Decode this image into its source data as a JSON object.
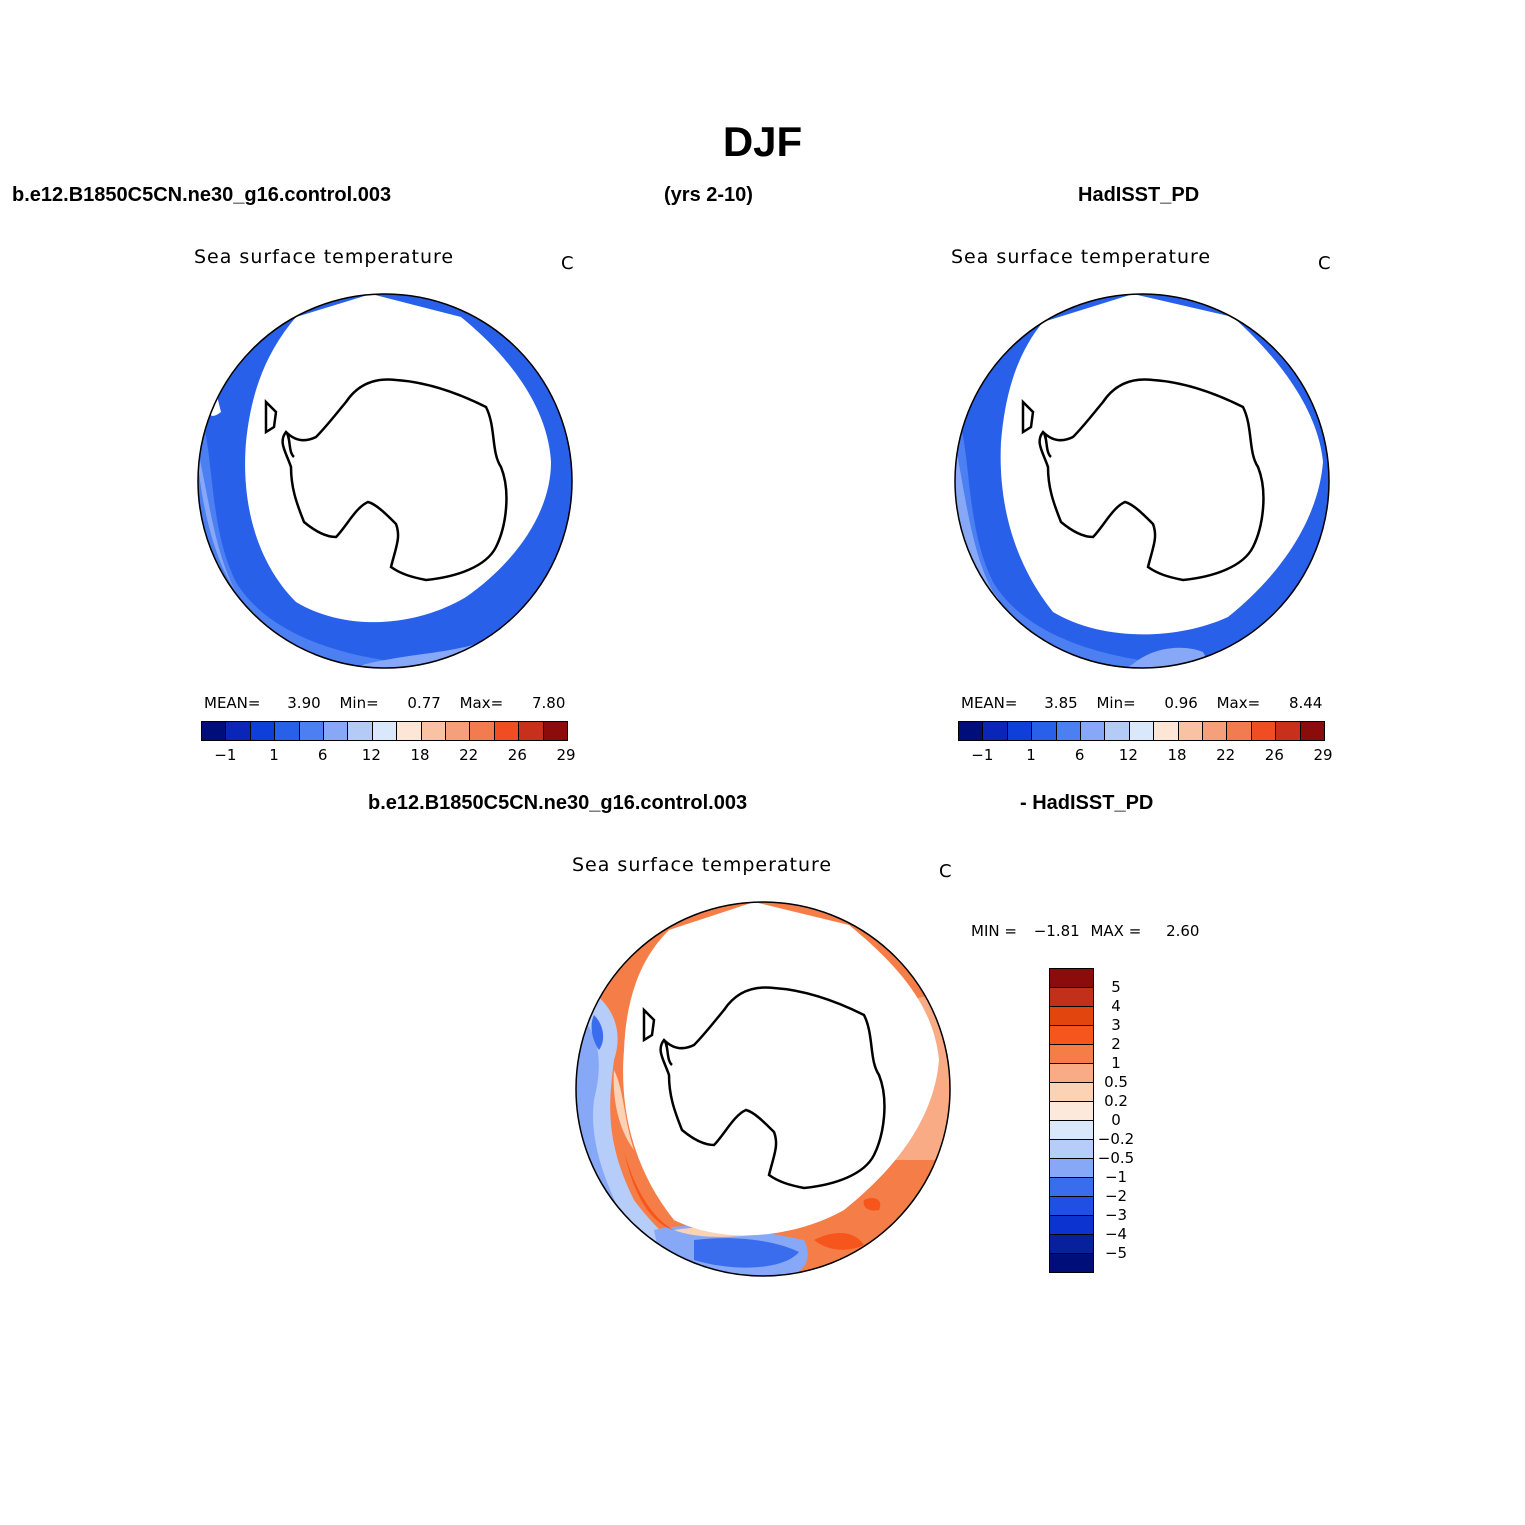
{
  "figure": {
    "title": "DJF",
    "header_left": "b.e12.B1850C5CN.ne30_g16.control.003",
    "header_center": "(yrs 2-10)",
    "header_right": "HadISST_PD",
    "diff_header_left": "b.e12.B1850C5CN.ne30_g16.control.003",
    "diff_header_right": "- HadISST_PD"
  },
  "panels": {
    "model": {
      "title": "Sea surface temperature",
      "units": "C",
      "mean_label": "MEAN=",
      "mean": "3.90",
      "min_label": "Min=",
      "min": "0.77",
      "max_label": "Max=",
      "max": "7.80"
    },
    "obs": {
      "title": "Sea surface temperature",
      "units": "C",
      "mean_label": "MEAN=",
      "mean": "3.85",
      "min_label": "Min=",
      "min": "0.96",
      "max_label": "Max=",
      "max": "8.44"
    },
    "diff": {
      "title": "Sea surface temperature",
      "units": "C",
      "min_label": "MIN =",
      "min": "−1.81",
      "max_label": "MAX =",
      "max": "2.60"
    }
  },
  "colorbar_abs": {
    "colors": [
      "#000e7a",
      "#0a26b8",
      "#0f3fd9",
      "#2860ea",
      "#4b7ff2",
      "#86a8f7",
      "#b4cbf8",
      "#dae8fb",
      "#fde6d6",
      "#f9c2a2",
      "#f5a07a",
      "#f27c50",
      "#f04d22",
      "#c9301c",
      "#8c0c0c"
    ],
    "labels": [
      "−1",
      "1",
      "6",
      "12",
      "18",
      "22",
      "26",
      "29"
    ]
  },
  "colorbar_diff": {
    "colors": [
      "#8c0c0c",
      "#c2301b",
      "#e3450e",
      "#f6561b",
      "#f57d47",
      "#f8ab85",
      "#fbd2b4",
      "#fde9dc",
      "#dae8fb",
      "#b7cdf9",
      "#86a8f7",
      "#3a6cee",
      "#1f4fe3",
      "#0c32d0",
      "#07209e",
      "#000e7a"
    ],
    "labels": [
      "5",
      "4",
      "3",
      "2",
      "1",
      "0.5",
      "0.2",
      "0",
      "−0.2",
      "−0.5",
      "−1",
      "−2",
      "−3",
      "−4",
      "−5"
    ]
  }
}
